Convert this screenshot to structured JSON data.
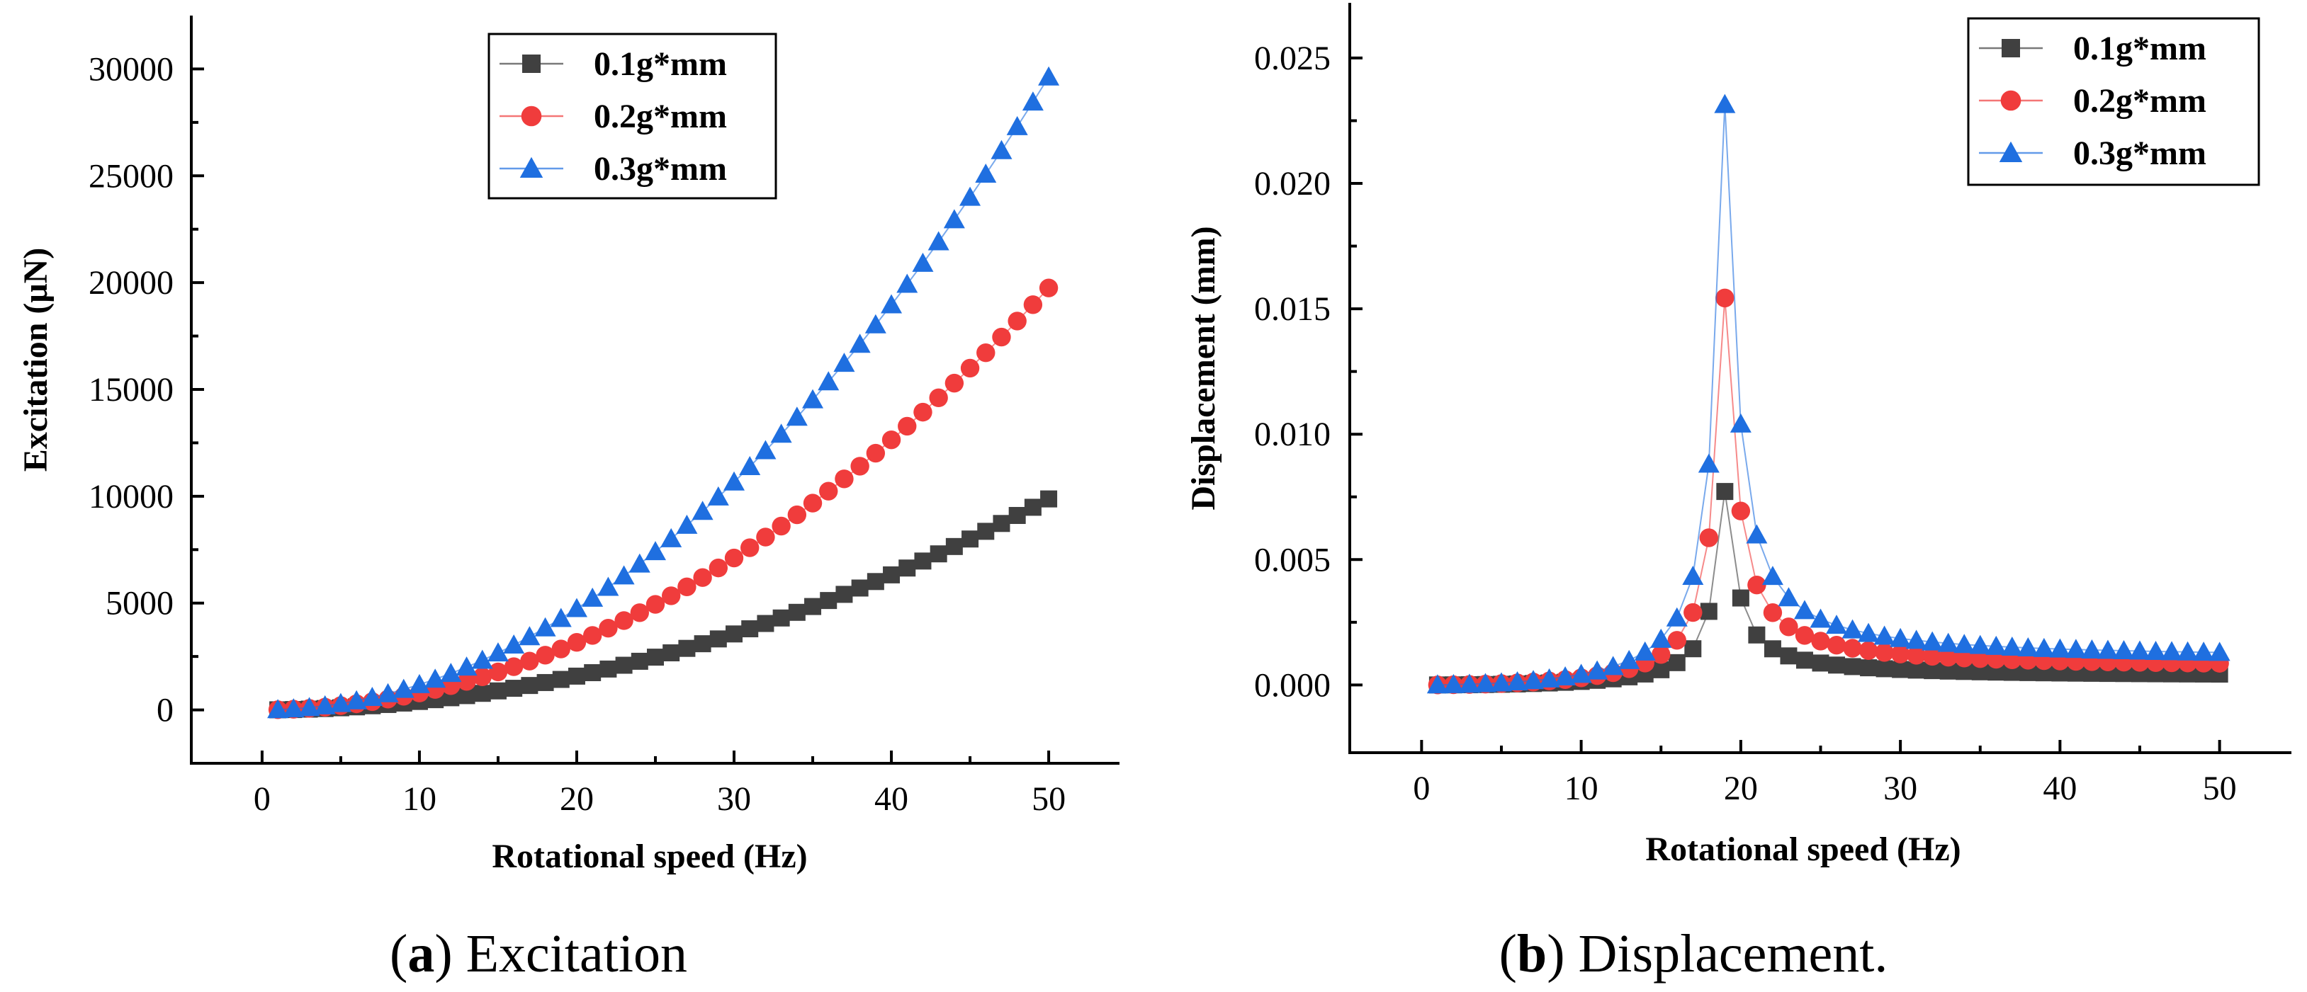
{
  "chart_data": [
    {
      "type": "scatter",
      "caption": {
        "open": "(",
        "letter": "a",
        "text": ") Excitation"
      },
      "xlabel": "Rotational speed (Hz)",
      "ylabel": "Excitation (μN)",
      "xlim": [
        -4.5,
        54.5
      ],
      "ylim": [
        -2500,
        32500
      ],
      "xticks": [
        0,
        10,
        20,
        30,
        40,
        50
      ],
      "yticks": [
        0,
        5000,
        10000,
        15000,
        20000,
        25000,
        30000
      ],
      "x": [
        1,
        2,
        3,
        4,
        5,
        6,
        7,
        8,
        9,
        10,
        11,
        12,
        13,
        14,
        15,
        16,
        17,
        18,
        19,
        20,
        21,
        22,
        23,
        24,
        25,
        26,
        27,
        28,
        29,
        30,
        31,
        32,
        33,
        34,
        35,
        36,
        37,
        38,
        39,
        40,
        41,
        42,
        43,
        44,
        45,
        46,
        47,
        48,
        49,
        50
      ],
      "series": [
        {
          "name": "0.1g*mm",
          "color": "#404040",
          "marker": "square",
          "coef": 3.95
        },
        {
          "name": "0.2g*mm",
          "color": "#f03c3c",
          "marker": "circle",
          "coef": 7.9
        },
        {
          "name": "0.3g*mm",
          "color": "#1f6fe0",
          "marker": "triangle",
          "coef": 11.85
        }
      ],
      "legend_position": "top-right"
    },
    {
      "type": "scatter",
      "caption": {
        "open": "(",
        "letter": "b",
        "text": ") Displacement."
      },
      "xlabel": "Rotational speed (Hz)",
      "ylabel": "Displacement (mm)",
      "xlim": [
        -4.5,
        54.5
      ],
      "ylim": [
        -0.0027,
        0.0272
      ],
      "xticks": [
        0,
        10,
        20,
        30,
        40,
        50
      ],
      "yticks": [
        "0.000",
        "0.005",
        "0.010",
        "0.015",
        "0.020",
        "0.025"
      ],
      "x": [
        1,
        2,
        3,
        4,
        5,
        6,
        7,
        8,
        9,
        10,
        11,
        12,
        13,
        14,
        15,
        16,
        17,
        18,
        19,
        20,
        21,
        22,
        23,
        24,
        25,
        26,
        27,
        28,
        29,
        30,
        31,
        32,
        33,
        34,
        35,
        36,
        37,
        38,
        39,
        40,
        41,
        42,
        43,
        44,
        45,
        46,
        47,
        48,
        49,
        50
      ],
      "series": [
        {
          "name": "0.1g*mm",
          "color": "#404040",
          "marker": "square",
          "scale": 1
        },
        {
          "name": "0.2g*mm",
          "color": "#f03c3c",
          "marker": "circle",
          "scale": 2
        },
        {
          "name": "0.3g*mm",
          "color": "#1f6fe0",
          "marker": "triangle",
          "scale": 3
        }
      ],
      "resonance_hz": 19,
      "peak_mm": 0.0078,
      "high_speed_mm": 0.00037,
      "legend_position": "top-right"
    }
  ]
}
